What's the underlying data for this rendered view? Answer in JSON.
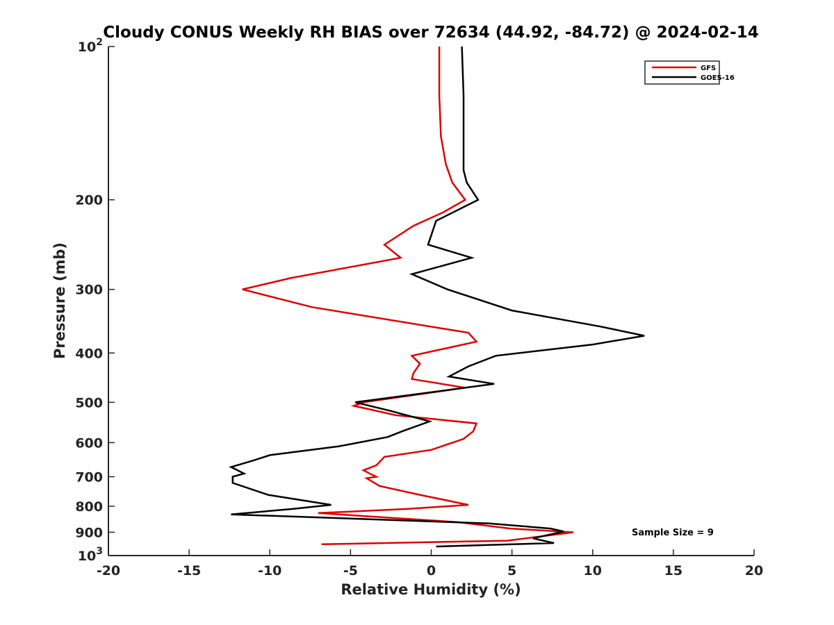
{
  "chart_data": {
    "type": "line",
    "title": "Cloudy CONUS Weekly RH BIAS over 72634 (44.92, -84.72) @ 2024-02-14",
    "xlabel": "Relative Humidity (%)",
    "ylabel": "Pressure (mb)",
    "xlim": [
      -20,
      20
    ],
    "ylim": [
      100,
      1000
    ],
    "y_scale": "log",
    "y_inverted": true,
    "grid": false,
    "legend_position": "top-right",
    "x_ticks": [
      -20,
      -15,
      -10,
      -5,
      0,
      5,
      10,
      15,
      20
    ],
    "x_tick_labels": [
      "-20",
      "-15",
      "-10",
      "-5",
      "0",
      "5",
      "10",
      "15",
      "20"
    ],
    "y_ticks": [
      200,
      300,
      400,
      500,
      600,
      700,
      800,
      900
    ],
    "y_tick_labels": [
      "200",
      "300",
      "400",
      "500",
      "600",
      "700",
      "800",
      "900"
    ],
    "y_tick_power_labels": [
      {
        "value": 100,
        "base": "10",
        "exp": "2"
      },
      {
        "value": 1000,
        "base": "10",
        "exp": "3"
      }
    ],
    "annotation": "Sample Size = 9",
    "series": [
      {
        "name": "GFS",
        "color": "#dd0000",
        "points": [
          [
            0.5,
            100
          ],
          [
            0.5,
            125
          ],
          [
            0.6,
            150
          ],
          [
            0.9,
            170
          ],
          [
            1.3,
            185
          ],
          [
            2.1,
            200
          ],
          [
            0.7,
            212
          ],
          [
            -1.1,
            225
          ],
          [
            -2.9,
            245
          ],
          [
            -1.9,
            260
          ],
          [
            -8.7,
            285
          ],
          [
            -11.7,
            300
          ],
          [
            -7.4,
            325
          ],
          [
            2.3,
            365
          ],
          [
            2.8,
            380
          ],
          [
            -1.2,
            405
          ],
          [
            -0.7,
            420
          ],
          [
            -1.1,
            438
          ],
          [
            -1.2,
            450
          ],
          [
            2.1,
            468
          ],
          [
            -4.2,
            500
          ],
          [
            -4.8,
            508
          ],
          [
            -2.2,
            530
          ],
          [
            2.8,
            550
          ],
          [
            2.6,
            570
          ],
          [
            2.0,
            590
          ],
          [
            0.0,
            620
          ],
          [
            -2.9,
            640
          ],
          [
            -3.4,
            665
          ],
          [
            -4.2,
            680
          ],
          [
            -3.7,
            693
          ],
          [
            -3.4,
            700
          ],
          [
            -4.0,
            705
          ],
          [
            -3.2,
            730
          ],
          [
            -0.7,
            760
          ],
          [
            2.3,
            795
          ],
          [
            -1.5,
            810
          ],
          [
            -7.0,
            825
          ],
          [
            1.7,
            860
          ],
          [
            4.9,
            885
          ],
          [
            8.8,
            900
          ],
          [
            4.7,
            935
          ],
          [
            -6.8,
            950
          ]
        ]
      },
      {
        "name": "GOES-16",
        "color": "#000000",
        "points": [
          [
            1.9,
            100
          ],
          [
            2.0,
            125
          ],
          [
            2.0,
            150
          ],
          [
            2.0,
            175
          ],
          [
            2.2,
            185
          ],
          [
            2.9,
            200
          ],
          [
            0.3,
            220
          ],
          [
            -0.2,
            245
          ],
          [
            2.5,
            260
          ],
          [
            -1.2,
            280
          ],
          [
            1.0,
            300
          ],
          [
            5.0,
            330
          ],
          [
            10.5,
            355
          ],
          [
            13.2,
            370
          ],
          [
            10.0,
            385
          ],
          [
            4.0,
            405
          ],
          [
            2.3,
            425
          ],
          [
            1.1,
            445
          ],
          [
            3.9,
            460
          ],
          [
            -4.7,
            500
          ],
          [
            -2.5,
            520
          ],
          [
            -0.1,
            545
          ],
          [
            -1.8,
            570
          ],
          [
            -2.7,
            585
          ],
          [
            -5.7,
            610
          ],
          [
            -10.0,
            635
          ],
          [
            -11.0,
            650
          ],
          [
            -12.4,
            670
          ],
          [
            -11.6,
            690
          ],
          [
            -12.3,
            700
          ],
          [
            -12.3,
            720
          ],
          [
            -10.1,
            760
          ],
          [
            -6.2,
            795
          ],
          [
            -8.6,
            810
          ],
          [
            -12.4,
            830
          ],
          [
            3.6,
            865
          ],
          [
            7.4,
            885
          ],
          [
            8.2,
            897
          ],
          [
            6.3,
            925
          ],
          [
            7.6,
            945
          ],
          [
            0.3,
            960
          ]
        ]
      }
    ]
  }
}
